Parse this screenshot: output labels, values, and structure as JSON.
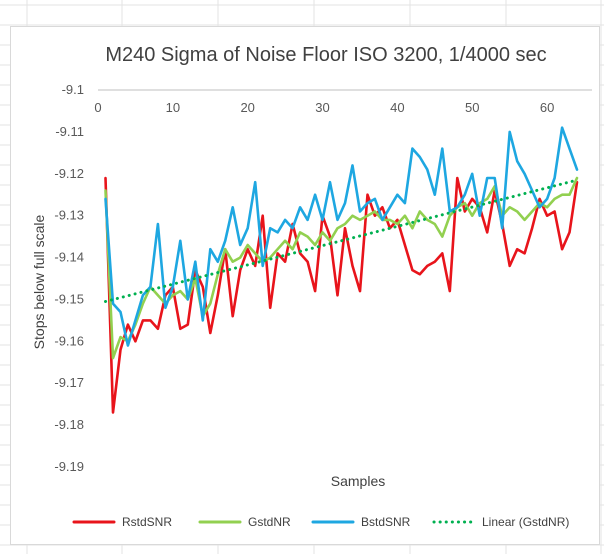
{
  "chart_data": {
    "type": "line",
    "title": "M240 Sigma of Noise Floor ISO 3200, 1/4000 sec",
    "xlabel": "Samples",
    "ylabel": "Stops below full scale",
    "xlim": [
      0,
      66
    ],
    "ylim": [
      -9.19,
      -9.1
    ],
    "xticks": [
      0,
      10,
      20,
      30,
      40,
      50,
      60
    ],
    "yticks": [
      -9.1,
      -9.11,
      -9.12,
      -9.13,
      -9.14,
      -9.15,
      -9.16,
      -9.17,
      -9.18,
      -9.19
    ],
    "x_axis_position": "top",
    "grid": false,
    "legend_position": "bottom",
    "series": [
      {
        "name": "RstdSNR",
        "color": "#e8141b",
        "style": "solid",
        "x": [
          1,
          2,
          3,
          4,
          5,
          6,
          7,
          8,
          9,
          10,
          11,
          12,
          13,
          14,
          15,
          16,
          17,
          18,
          19,
          20,
          21,
          22,
          23,
          24,
          25,
          26,
          27,
          28,
          29,
          30,
          31,
          32,
          33,
          34,
          35,
          36,
          37,
          38,
          39,
          40,
          41,
          42,
          43,
          44,
          45,
          46,
          47,
          48,
          49,
          50,
          51,
          52,
          53,
          54,
          55,
          56,
          57,
          58,
          59,
          60,
          61,
          62,
          63,
          64
        ],
        "values": [
          -9.121,
          -9.177,
          -9.162,
          -9.156,
          -9.16,
          -9.155,
          -9.155,
          -9.157,
          -9.149,
          -9.147,
          -9.157,
          -9.156,
          -9.143,
          -9.147,
          -9.158,
          -9.149,
          -9.138,
          -9.154,
          -9.143,
          -9.138,
          -9.142,
          -9.13,
          -9.152,
          -9.139,
          -9.141,
          -9.132,
          -9.139,
          -9.141,
          -9.148,
          -9.13,
          -9.135,
          -9.149,
          -9.133,
          -9.142,
          -9.148,
          -9.125,
          -9.13,
          -9.128,
          -9.133,
          -9.131,
          -9.137,
          -9.143,
          -9.144,
          -9.142,
          -9.141,
          -9.139,
          -9.148,
          -9.121,
          -9.129,
          -9.126,
          -9.128,
          -9.134,
          -9.124,
          -9.132,
          -9.142,
          -9.138,
          -9.139,
          -9.133,
          -9.126,
          -9.13,
          -9.129,
          -9.138,
          -9.134,
          -9.122
        ]
      },
      {
        "name": "GstdNR",
        "color": "#92d050",
        "style": "solid",
        "x": [
          1,
          2,
          3,
          4,
          5,
          6,
          7,
          8,
          9,
          10,
          11,
          12,
          13,
          14,
          15,
          16,
          17,
          18,
          19,
          20,
          21,
          22,
          23,
          24,
          25,
          26,
          27,
          28,
          29,
          30,
          31,
          32,
          33,
          34,
          35,
          36,
          37,
          38,
          39,
          40,
          41,
          42,
          43,
          44,
          45,
          46,
          47,
          48,
          49,
          50,
          51,
          52,
          53,
          54,
          55,
          56,
          57,
          58,
          59,
          60,
          61,
          62,
          63,
          64
        ],
        "values": [
          -9.124,
          -9.164,
          -9.159,
          -9.16,
          -9.156,
          -9.151,
          -9.147,
          -9.149,
          -9.151,
          -9.149,
          -9.148,
          -9.15,
          -9.145,
          -9.154,
          -9.151,
          -9.144,
          -9.138,
          -9.141,
          -9.14,
          -9.137,
          -9.139,
          -9.141,
          -9.14,
          -9.138,
          -9.136,
          -9.138,
          -9.134,
          -9.135,
          -9.137,
          -9.134,
          -9.136,
          -9.133,
          -9.132,
          -9.13,
          -9.131,
          -9.13,
          -9.129,
          -9.131,
          -9.131,
          -9.132,
          -9.13,
          -9.133,
          -9.129,
          -9.131,
          -9.132,
          -9.135,
          -9.13,
          -9.128,
          -9.127,
          -9.13,
          -9.127,
          -9.126,
          -9.123,
          -9.13,
          -9.128,
          -9.129,
          -9.131,
          -9.129,
          -9.127,
          -9.128,
          -9.126,
          -9.125,
          -9.125,
          -9.121
        ]
      },
      {
        "name": "BstdSNR",
        "color": "#1ea7e1",
        "style": "solid",
        "x": [
          1,
          2,
          3,
          4,
          5,
          6,
          7,
          8,
          9,
          10,
          11,
          12,
          13,
          14,
          15,
          16,
          17,
          18,
          19,
          20,
          21,
          22,
          23,
          24,
          25,
          26,
          27,
          28,
          29,
          30,
          31,
          32,
          33,
          34,
          35,
          36,
          37,
          38,
          39,
          40,
          41,
          42,
          43,
          44,
          45,
          46,
          47,
          48,
          49,
          50,
          51,
          52,
          53,
          54,
          55,
          56,
          57,
          58,
          59,
          60,
          61,
          62,
          63,
          64
        ],
        "values": [
          -9.126,
          -9.151,
          -9.153,
          -9.161,
          -9.155,
          -9.149,
          -9.147,
          -9.132,
          -9.152,
          -9.147,
          -9.136,
          -9.15,
          -9.141,
          -9.155,
          -9.138,
          -9.141,
          -9.136,
          -9.128,
          -9.137,
          -9.133,
          -9.122,
          -9.142,
          -9.133,
          -9.134,
          -9.131,
          -9.133,
          -9.128,
          -9.131,
          -9.125,
          -9.131,
          -9.122,
          -9.131,
          -9.127,
          -9.118,
          -9.129,
          -9.127,
          -9.126,
          -9.131,
          -9.128,
          -9.125,
          -9.127,
          -9.114,
          -9.116,
          -9.119,
          -9.125,
          -9.114,
          -9.129,
          -9.128,
          -9.125,
          -9.12,
          -9.13,
          -9.121,
          -9.121,
          -9.133,
          -9.11,
          -9.117,
          -9.12,
          -9.124,
          -9.128,
          -9.126,
          -9.121,
          -9.109,
          -9.114,
          -9.119
        ]
      },
      {
        "name": "Linear (GstdNR)",
        "color": "#00b050",
        "style": "dotted",
        "x": [
          1,
          64
        ],
        "values": [
          -9.1505,
          -9.1215
        ]
      }
    ]
  }
}
